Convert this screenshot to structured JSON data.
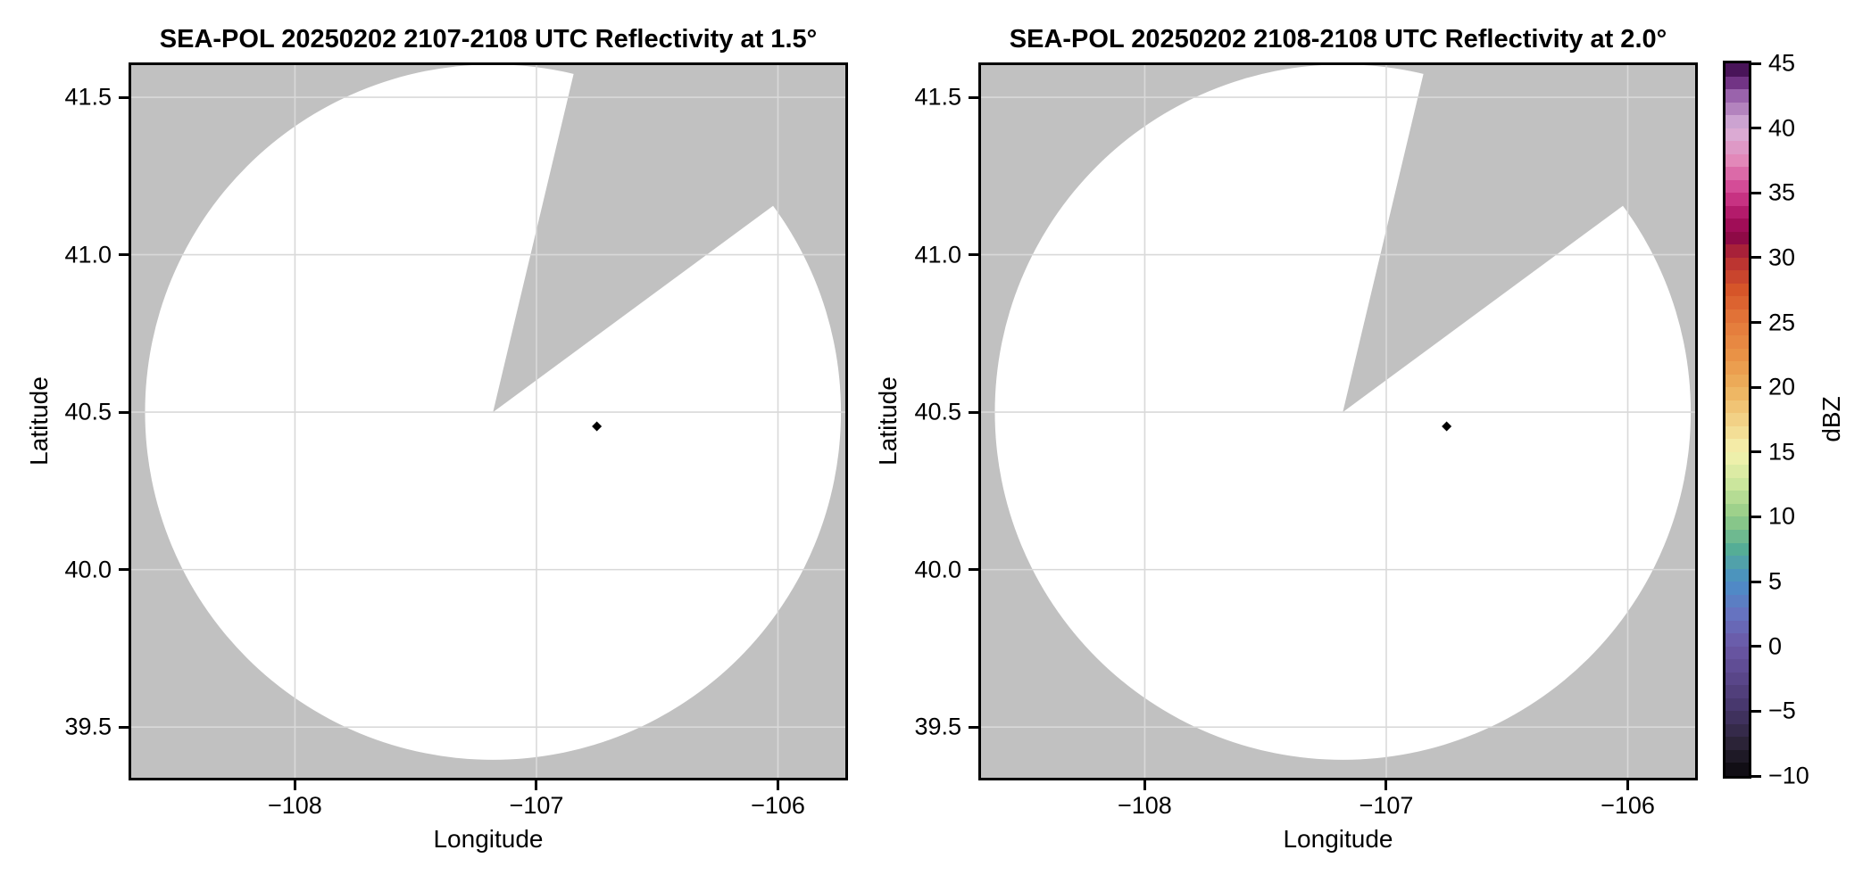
{
  "chart_data": [
    {
      "type": "heatmap",
      "subtype": "radar-ppi-reflectivity",
      "title": "SEA-POL 20250202 2107-2108 UTC Reflectivity at 1.5°",
      "xlabel": "Longitude",
      "ylabel": "Latitude",
      "xlim": [
        -108.678,
        -105.721
      ],
      "ylim": [
        39.339,
        41.602
      ],
      "xticks": {
        "values": [
          -108,
          -107,
          -106
        ],
        "labels": [
          "−108",
          "−107",
          "−106"
        ]
      },
      "yticks": {
        "values": [
          41.5,
          41.0,
          40.5,
          40.0,
          39.5
        ],
        "labels": [
          "41.5",
          "41.0",
          "40.5",
          "40.0",
          "39.5"
        ]
      },
      "grid": true,
      "grid_color": "#d9d9d9",
      "no_data_color": "#c1c1c1",
      "scan_fill_color": "#ffffff",
      "radar_center": {
        "lon": -107.18,
        "lat": 40.5
      },
      "scan_radius_deg_lat": 1.104,
      "missing_sector_azimuths_deg": [
        13.4,
        53.6
      ],
      "marker": {
        "lon": -106.75,
        "lat": 40.455,
        "shape": "diamond",
        "color": "#000000"
      }
    },
    {
      "type": "heatmap",
      "subtype": "radar-ppi-reflectivity",
      "title": "SEA-POL 20250202 2108-2108 UTC Reflectivity at 2.0°",
      "xlabel": "Longitude",
      "ylabel": "Latitude",
      "xlim": [
        -108.678,
        -105.721
      ],
      "ylim": [
        39.339,
        41.602
      ],
      "xticks": {
        "values": [
          -108,
          -107,
          -106
        ],
        "labels": [
          "−108",
          "−107",
          "−106"
        ]
      },
      "yticks": {
        "values": [
          41.5,
          41.0,
          40.5,
          40.0,
          39.5
        ],
        "labels": [
          "41.5",
          "41.0",
          "40.5",
          "40.0",
          "39.5"
        ]
      },
      "grid": true,
      "grid_color": "#d9d9d9",
      "no_data_color": "#c1c1c1",
      "scan_fill_color": "#ffffff",
      "radar_center": {
        "lon": -107.18,
        "lat": 40.5
      },
      "scan_radius_deg_lat": 1.104,
      "missing_sector_azimuths_deg": [
        13.4,
        53.6
      ],
      "marker": {
        "lon": -106.75,
        "lat": 40.455,
        "shape": "diamond",
        "color": "#000000"
      }
    }
  ],
  "colorbar": {
    "label": "dBZ",
    "min": -10,
    "max": 45,
    "tick_values": [
      45,
      40,
      35,
      30,
      25,
      20,
      15,
      10,
      5,
      0,
      -5,
      -10
    ],
    "tick_labels": [
      "45",
      "40",
      "35",
      "30",
      "25",
      "20",
      "15",
      "10",
      "5",
      "0",
      "−5",
      "−10"
    ],
    "band_step_dbz": 1,
    "color_stops": [
      {
        "v": -10,
        "c": "#0a090d"
      },
      {
        "v": -7.5,
        "c": "#2b2337"
      },
      {
        "v": -5,
        "c": "#443467"
      },
      {
        "v": -2.5,
        "c": "#594689"
      },
      {
        "v": 0,
        "c": "#6b57a6"
      },
      {
        "v": 2.5,
        "c": "#6673c0"
      },
      {
        "v": 5,
        "c": "#4a8ec7"
      },
      {
        "v": 7.5,
        "c": "#55ad96"
      },
      {
        "v": 10,
        "c": "#93cc87"
      },
      {
        "v": 12.5,
        "c": "#cbe69d"
      },
      {
        "v": 15,
        "c": "#f5f2af"
      },
      {
        "v": 17.5,
        "c": "#f2d186"
      },
      {
        "v": 20,
        "c": "#edb05c"
      },
      {
        "v": 22.5,
        "c": "#e99246"
      },
      {
        "v": 25,
        "c": "#e4793b"
      },
      {
        "v": 27.5,
        "c": "#d65529"
      },
      {
        "v": 30,
        "c": "#b52d33"
      },
      {
        "v": 31.5,
        "c": "#8e0a46"
      },
      {
        "v": 33,
        "c": "#a90f5f"
      },
      {
        "v": 35,
        "c": "#d13d8e"
      },
      {
        "v": 37.5,
        "c": "#e288b9"
      },
      {
        "v": 40,
        "c": "#d9b3da"
      },
      {
        "v": 42.5,
        "c": "#9a63ac"
      },
      {
        "v": 44,
        "c": "#5e1d72"
      },
      {
        "v": 45,
        "c": "#340b3f"
      }
    ]
  }
}
